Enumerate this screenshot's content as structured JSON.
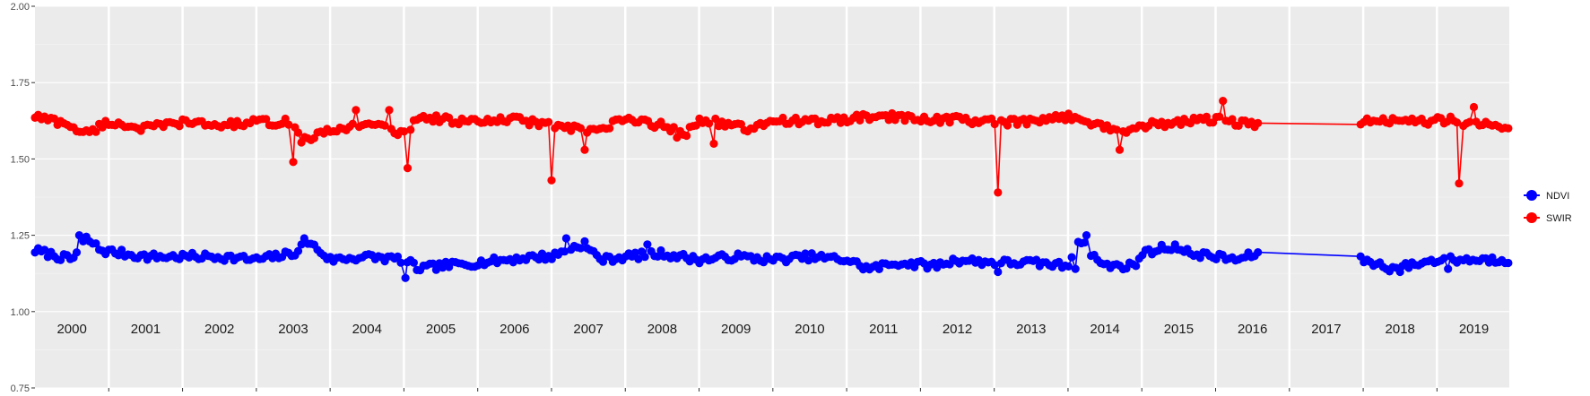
{
  "chart_data": {
    "type": "line",
    "title": "",
    "xlabel": "",
    "ylabel": "",
    "ylim": [
      0.75,
      2.0
    ],
    "yticks": [
      "0.75",
      "1.00",
      "1.25",
      "1.50",
      "1.75",
      "2.00"
    ],
    "year_labels": [
      "2000",
      "2001",
      "2002",
      "2003",
      "2004",
      "2005",
      "2006",
      "2007",
      "2008",
      "2009",
      "2010",
      "2011",
      "2012",
      "2013",
      "2014",
      "2015",
      "2016",
      "2017",
      "2018",
      "2019"
    ],
    "xlim": [
      2000.0,
      2019.98
    ],
    "grid": true,
    "legend_position": "right",
    "gap": [
      2016.6,
      2017.95
    ],
    "series": [
      {
        "name": "NDVI",
        "color": "#0000ff",
        "baseline": [
          [
            2000.0,
            1.2
          ],
          [
            2000.5,
            1.17
          ],
          [
            2000.7,
            1.24
          ],
          [
            2000.9,
            1.2
          ],
          [
            2001.5,
            1.18
          ],
          [
            2002.5,
            1.18
          ],
          [
            2003.0,
            1.17
          ],
          [
            2003.5,
            1.19
          ],
          [
            2003.7,
            1.23
          ],
          [
            2004.0,
            1.17
          ],
          [
            2004.5,
            1.18
          ],
          [
            2005.0,
            1.17
          ],
          [
            2005.2,
            1.14
          ],
          [
            2005.5,
            1.15
          ],
          [
            2006.0,
            1.16
          ],
          [
            2006.8,
            1.18
          ],
          [
            2007.0,
            1.18
          ],
          [
            2007.4,
            1.22
          ],
          [
            2007.7,
            1.17
          ],
          [
            2008.0,
            1.18
          ],
          [
            2008.5,
            1.19
          ],
          [
            2009.0,
            1.17
          ],
          [
            2009.5,
            1.18
          ],
          [
            2010.0,
            1.17
          ],
          [
            2010.5,
            1.18
          ],
          [
            2011.0,
            1.17
          ],
          [
            2011.3,
            1.14
          ],
          [
            2011.7,
            1.16
          ],
          [
            2012.2,
            1.15
          ],
          [
            2012.5,
            1.17
          ],
          [
            2013.0,
            1.16
          ],
          [
            2013.5,
            1.16
          ],
          [
            2014.0,
            1.15
          ],
          [
            2014.15,
            1.24
          ],
          [
            2014.3,
            1.19
          ],
          [
            2014.5,
            1.15
          ],
          [
            2014.9,
            1.15
          ],
          [
            2015.0,
            1.19
          ],
          [
            2015.3,
            1.21
          ],
          [
            2015.7,
            1.19
          ],
          [
            2016.0,
            1.18
          ],
          [
            2016.3,
            1.17
          ],
          [
            2016.55,
            1.19
          ],
          [
            2018.0,
            1.17
          ],
          [
            2018.4,
            1.14
          ],
          [
            2018.8,
            1.16
          ],
          [
            2019.0,
            1.17
          ],
          [
            2019.5,
            1.17
          ],
          [
            2019.98,
            1.17
          ]
        ],
        "noise": 0.012,
        "dips": [
          [
            2005.02,
            1.11
          ],
          [
            2013.05,
            1.13
          ],
          [
            2014.1,
            1.14
          ],
          [
            2018.5,
            1.13
          ],
          [
            2019.15,
            1.14
          ]
        ],
        "spikes": [
          [
            2000.6,
            1.25
          ],
          [
            2003.65,
            1.24
          ],
          [
            2007.2,
            1.24
          ],
          [
            2007.45,
            1.23
          ],
          [
            2008.3,
            1.22
          ],
          [
            2014.25,
            1.25
          ],
          [
            2015.45,
            1.22
          ]
        ]
      },
      {
        "name": "SWIR",
        "color": "#ff0000",
        "baseline": [
          [
            2000.0,
            1.64
          ],
          [
            2000.5,
            1.61
          ],
          [
            2000.65,
            1.58
          ],
          [
            2001.0,
            1.62
          ],
          [
            2001.5,
            1.6
          ],
          [
            2002.0,
            1.62
          ],
          [
            2002.5,
            1.61
          ],
          [
            2003.0,
            1.62
          ],
          [
            2003.5,
            1.62
          ],
          [
            2003.6,
            1.56
          ],
          [
            2004.0,
            1.59
          ],
          [
            2004.5,
            1.62
          ],
          [
            2005.0,
            1.58
          ],
          [
            2005.2,
            1.64
          ],
          [
            2005.5,
            1.63
          ],
          [
            2006.0,
            1.62
          ],
          [
            2006.5,
            1.63
          ],
          [
            2007.0,
            1.61
          ],
          [
            2007.5,
            1.59
          ],
          [
            2007.7,
            1.6
          ],
          [
            2008.0,
            1.63
          ],
          [
            2008.5,
            1.61
          ],
          [
            2008.8,
            1.58
          ],
          [
            2009.0,
            1.63
          ],
          [
            2009.5,
            1.61
          ],
          [
            2009.7,
            1.59
          ],
          [
            2010.0,
            1.63
          ],
          [
            2010.5,
            1.62
          ],
          [
            2011.0,
            1.63
          ],
          [
            2011.5,
            1.64
          ],
          [
            2012.0,
            1.63
          ],
          [
            2012.5,
            1.63
          ],
          [
            2013.0,
            1.62
          ],
          [
            2013.5,
            1.62
          ],
          [
            2014.0,
            1.64
          ],
          [
            2014.5,
            1.61
          ],
          [
            2014.7,
            1.58
          ],
          [
            2015.0,
            1.61
          ],
          [
            2015.5,
            1.62
          ],
          [
            2016.0,
            1.63
          ],
          [
            2016.55,
            1.61
          ],
          [
            2018.0,
            1.62
          ],
          [
            2018.5,
            1.63
          ],
          [
            2018.8,
            1.62
          ],
          [
            2019.2,
            1.63
          ],
          [
            2019.5,
            1.61
          ],
          [
            2019.98,
            1.61
          ]
        ],
        "noise": 0.012,
        "dips": [
          [
            2003.5,
            1.49
          ],
          [
            2005.05,
            1.47
          ],
          [
            2007.0,
            1.43
          ],
          [
            2007.45,
            1.53
          ],
          [
            2008.7,
            1.57
          ],
          [
            2009.2,
            1.55
          ],
          [
            2013.05,
            1.39
          ],
          [
            2014.7,
            1.53
          ],
          [
            2019.3,
            1.42
          ]
        ],
        "spikes": [
          [
            2004.35,
            1.66
          ],
          [
            2004.8,
            1.66
          ],
          [
            2016.1,
            1.69
          ],
          [
            2019.5,
            1.67
          ]
        ]
      }
    ]
  }
}
